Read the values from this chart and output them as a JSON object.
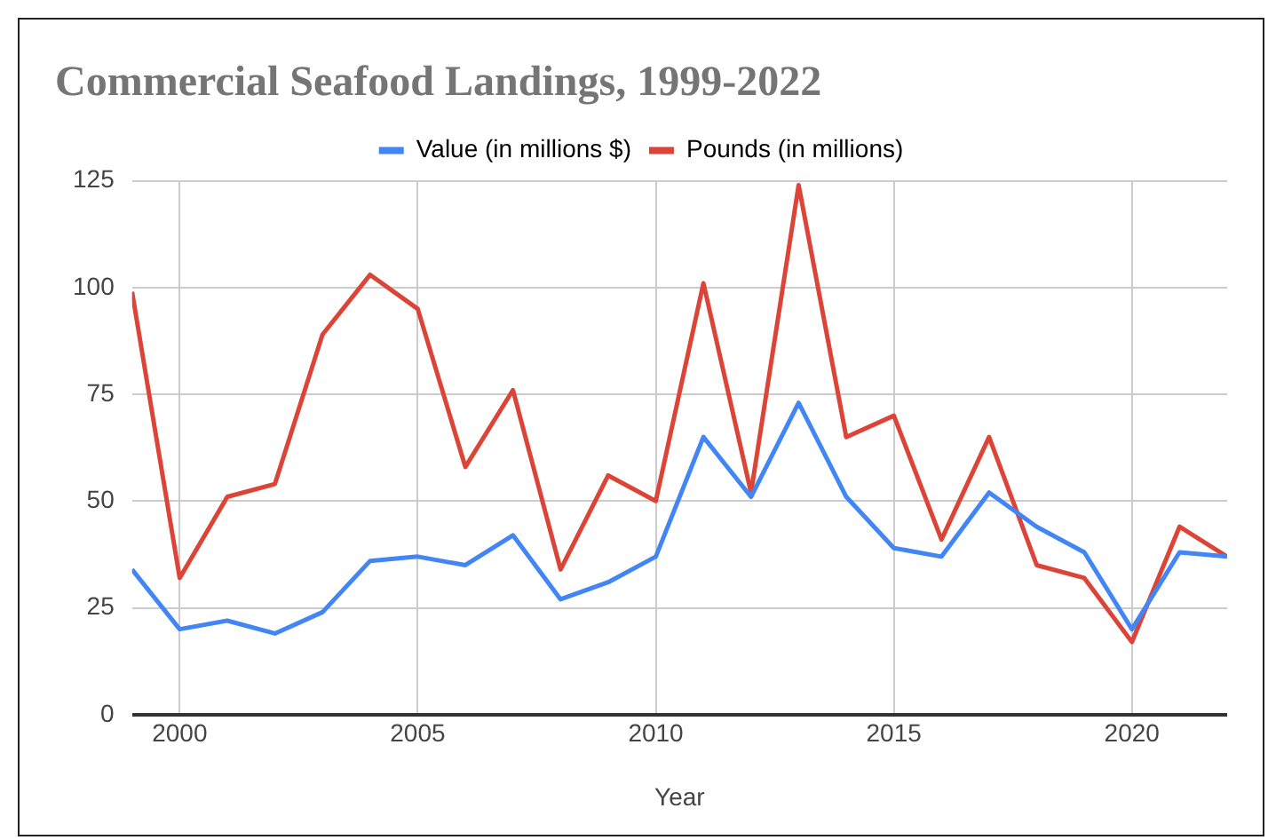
{
  "chart_data": {
    "type": "line",
    "title": "Commercial Seafood Landings, 1999-2022",
    "xlabel": "Year",
    "x": [
      1999,
      2000,
      2001,
      2002,
      2003,
      2004,
      2005,
      2006,
      2007,
      2008,
      2009,
      2010,
      2011,
      2012,
      2013,
      2014,
      2015,
      2016,
      2017,
      2018,
      2019,
      2020,
      2021,
      2022
    ],
    "series": [
      {
        "name": "Value (in millions $)",
        "color": "#4285f4",
        "values": [
          34,
          20,
          22,
          19,
          24,
          36,
          37,
          35,
          42,
          27,
          31,
          37,
          65,
          51,
          73,
          51,
          39,
          37,
          52,
          44,
          38,
          20,
          38,
          37
        ]
      },
      {
        "name": "Pounds (in millions)",
        "color": "#db4437",
        "values": [
          99,
          32,
          51,
          54,
          89,
          103,
          95,
          58,
          76,
          34,
          56,
          50,
          101,
          52,
          124,
          65,
          70,
          41,
          65,
          35,
          32,
          17,
          44,
          37
        ]
      }
    ],
    "xlim": [
      1999,
      2022
    ],
    "xticks": [
      2000,
      2005,
      2010,
      2015,
      2020
    ],
    "ylim": [
      0,
      125
    ],
    "yticks": [
      0,
      25,
      50,
      75,
      100,
      125
    ],
    "grid": true,
    "legend": "top",
    "marker": "none",
    "line_style": "solid"
  }
}
